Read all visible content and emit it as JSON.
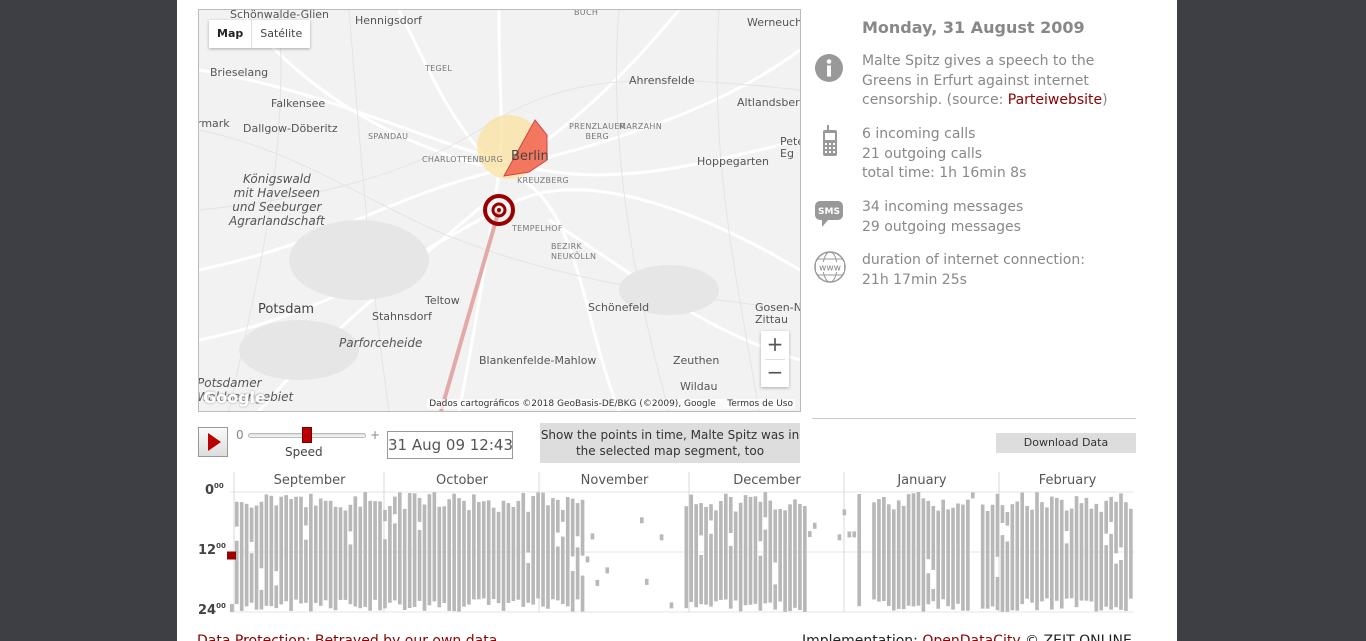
{
  "map": {
    "type_buttons": [
      "Map",
      "Satélite"
    ],
    "zoom_in": "+",
    "zoom_out": "−",
    "attribution": "Dados cartográficos ©2018 GeoBasis-DE/BKG (©2009), Google",
    "terms": "Termos de Uso",
    "logo": "Google",
    "places": [
      {
        "name": "Schönwalde-Glien",
        "cls": ""
      },
      {
        "name": "Hennigsdorf",
        "cls": ""
      },
      {
        "name": "BUCH",
        "cls": "small"
      },
      {
        "name": "Werneuche",
        "cls": ""
      },
      {
        "name": "Brieselang",
        "cls": ""
      },
      {
        "name": "TEGEL",
        "cls": "small"
      },
      {
        "name": "Ahrensfelde",
        "cls": ""
      },
      {
        "name": "Falkensee",
        "cls": ""
      },
      {
        "name": "Altlandsber",
        "cls": ""
      },
      {
        "name": "rmark",
        "cls": ""
      },
      {
        "name": "Dallgow-Döberitz",
        "cls": ""
      },
      {
        "name": "SPANDAU",
        "cls": "small"
      },
      {
        "name": "PRENZLAUER BERG",
        "cls": "small"
      },
      {
        "name": "MARZAHN",
        "cls": "small"
      },
      {
        "name": "Pete Eg",
        "cls": ""
      },
      {
        "name": "CHARLOTTENBURG",
        "cls": "small"
      },
      {
        "name": "Berlin",
        "cls": "big"
      },
      {
        "name": "Hoppegarten",
        "cls": ""
      },
      {
        "name": "KREUZBERG",
        "cls": "small"
      },
      {
        "name": "Königswald mit Havelseen und Seeburger Agrarlandschaft",
        "cls": "italic"
      },
      {
        "name": "TEMPELHOF",
        "cls": "small"
      },
      {
        "name": "BEZIRK NEUKÖLLN",
        "cls": "small"
      },
      {
        "name": "Teltow",
        "cls": ""
      },
      {
        "name": "Stahnsdorf",
        "cls": ""
      },
      {
        "name": "Schönefeld",
        "cls": ""
      },
      {
        "name": "Potsdam",
        "cls": "big"
      },
      {
        "name": "Gosen-Ne Zittau",
        "cls": ""
      },
      {
        "name": "Parforceheide",
        "cls": "italic"
      },
      {
        "name": "Blankenfelde-Mahlow",
        "cls": ""
      },
      {
        "name": "Zeuthen",
        "cls": ""
      },
      {
        "name": "Wildau",
        "cls": ""
      },
      {
        "name": "Potsdamer Waldseengebiet",
        "cls": "italic"
      }
    ]
  },
  "info": {
    "date": "Monday, 31 August 2009",
    "event_text": "Malte Spitz gives a speech to the Greens in Erfurt against internet censorship. (source: ",
    "event_link": "Parteiwebsite",
    "event_end": ")",
    "calls_in": "6 incoming calls",
    "calls_out": "21 outgoing calls",
    "calls_time": "total time: 1h 16min 8s",
    "sms_in": "34 incoming messages",
    "sms_out": "29 outgoing messages",
    "net_label": "duration of internet connection:",
    "net_time": "21h 17min 25s",
    "icons": [
      "info-icon",
      "phone-icon",
      "sms-icon",
      "www-icon"
    ],
    "sms_icon_text": "SMS",
    "www_icon_text": "www"
  },
  "controls": {
    "speed_min": "0",
    "speed_max": "+",
    "speed_label": "Speed",
    "speed_level": 0.5,
    "datetime": "31 Aug 09 12:43",
    "show_points": "Show the points in time, Malte Spitz was in the selected map segment, too",
    "download": "Download Data"
  },
  "timeline": {
    "months": [
      "September",
      "October",
      "November",
      "December",
      "January",
      "February"
    ],
    "hours": [
      {
        "h": "0",
        "m": "00"
      },
      {
        "h": "12",
        "m": "00"
      },
      {
        "h": "24",
        "m": "00"
      }
    ],
    "days": 183,
    "selected_day": 0,
    "selected_hour": 12.7,
    "accent": "#9b0000"
  },
  "footer": {
    "left": "Data Protection: Betrayed by our own data",
    "right_prefix": "Implementation: ",
    "right_link": "OpenDataCity",
    "right_suffix": " © ZEIT ONLINE"
  }
}
